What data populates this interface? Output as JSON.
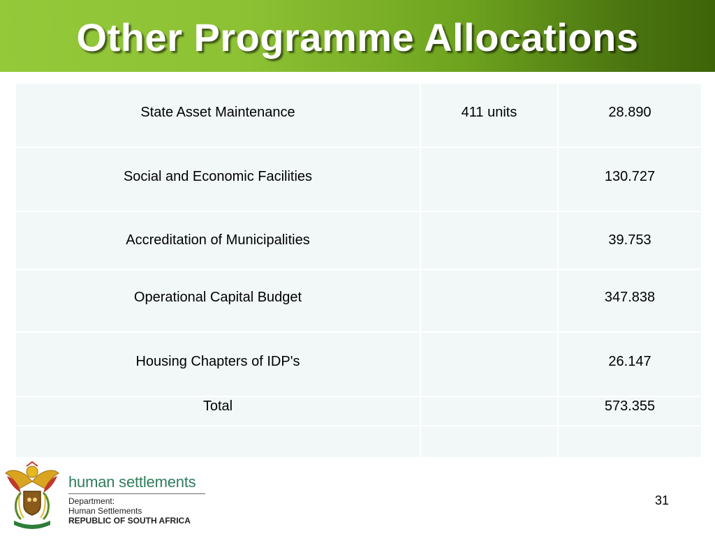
{
  "slide": {
    "title": "Other Programme Allocations",
    "page_number": "31"
  },
  "table": {
    "rows": [
      {
        "programme": "State Asset Maintenance",
        "units": "411 units",
        "amount": "28.890"
      },
      {
        "programme": "Social and Economic Facilities",
        "units": "",
        "amount": "130.727"
      },
      {
        "programme": "Accreditation of Municipalities",
        "units": "",
        "amount": "39.753"
      },
      {
        "programme": "Operational Capital Budget",
        "units": "",
        "amount": "347.838"
      },
      {
        "programme": "Housing Chapters of IDP's",
        "units": "",
        "amount": "26.147"
      }
    ],
    "total": {
      "label": "Total",
      "units": "",
      "amount": "573.355"
    }
  },
  "footer": {
    "brand": "human settlements",
    "dept_line1": "Department:",
    "dept_line2": "Human Settlements",
    "dept_line3": "REPUBLIC OF SOUTH AFRICA",
    "emblem_icon": "coat-of-arms-icon"
  },
  "colors": {
    "title_bar_start": "#94c93a",
    "title_bar_end": "#3e6408",
    "cell_bg": "#f2f8f8",
    "brand_text": "#2e7d5a"
  }
}
